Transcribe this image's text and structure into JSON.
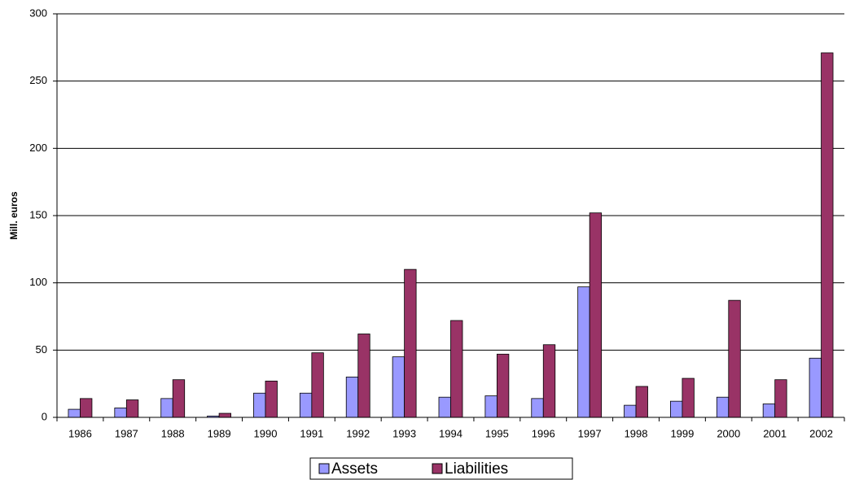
{
  "chart_data": {
    "type": "bar",
    "y_label": "Mill. euros",
    "categories": [
      "1986",
      "1987",
      "1988",
      "1989",
      "1990",
      "1991",
      "1992",
      "1993",
      "1994",
      "1995",
      "1996",
      "1997",
      "1998",
      "1999",
      "2000",
      "2001",
      "2002"
    ],
    "series": [
      {
        "name": "Assets",
        "color": "#9999ff",
        "values": [
          6,
          7,
          14,
          1,
          18,
          18,
          30,
          45,
          15,
          16,
          14,
          97,
          9,
          12,
          15,
          10,
          44
        ]
      },
      {
        "name": "Liabilities",
        "color": "#993366",
        "values": [
          14,
          13,
          28,
          3,
          27,
          48,
          62,
          110,
          72,
          47,
          54,
          152,
          23,
          29,
          87,
          28,
          271
        ]
      }
    ],
    "ylim": [
      0,
      300
    ],
    "yticks": [
      0,
      50,
      100,
      150,
      200,
      250,
      300
    ],
    "grid": true,
    "legend": "bottom"
  }
}
